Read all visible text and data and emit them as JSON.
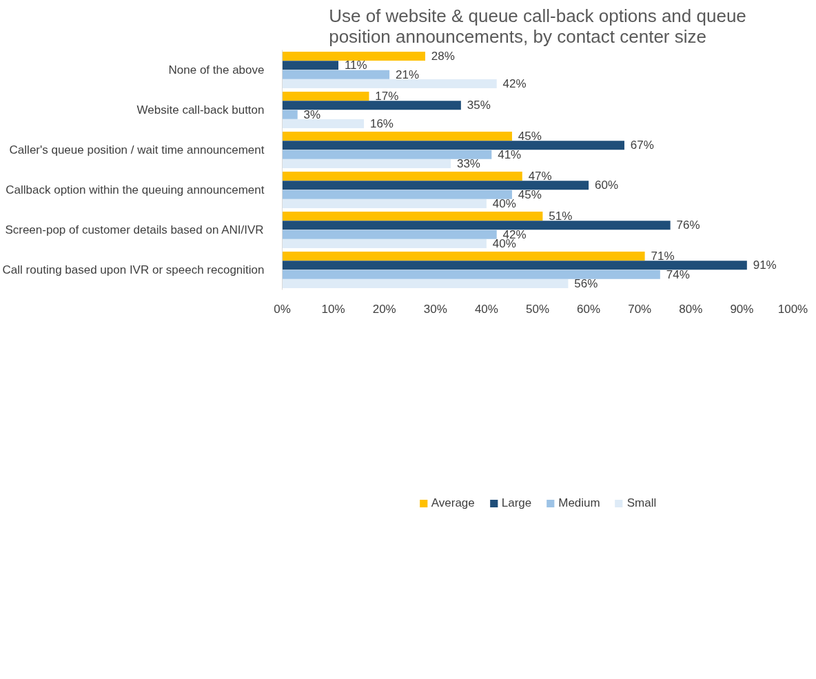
{
  "chart_data": {
    "type": "bar",
    "orientation": "horizontal",
    "title": "Use of website & queue call-back options and queue position announcements, by contact center size",
    "categories": [
      "None of the above",
      "Website call-back button",
      "Caller's queue position / wait time announcement",
      "Callback option within the queuing announcement",
      "Screen-pop of customer details based on ANI/IVR",
      "Call routing based upon IVR or speech recognition"
    ],
    "series": [
      {
        "name": "Average",
        "color": "#ffc000",
        "values": [
          28,
          17,
          45,
          47,
          51,
          71
        ],
        "value_labels": [
          "28%",
          "17%",
          "45%",
          "47%",
          "51%",
          "71%"
        ]
      },
      {
        "name": "Large",
        "color": "#1f4e79",
        "values": [
          11,
          35,
          67,
          60,
          76,
          91
        ],
        "value_labels": [
          "11%",
          "35%",
          "67%",
          "60%",
          "76%",
          "91%"
        ]
      },
      {
        "name": "Medium",
        "color": "#9dc3e6",
        "values": [
          21,
          3,
          41,
          45,
          42,
          74
        ],
        "value_labels": [
          "21%",
          "3%",
          "41%",
          "45%",
          "42%",
          "74%"
        ]
      },
      {
        "name": "Small",
        "color": "#deebf7",
        "values": [
          42,
          16,
          33,
          40,
          40,
          56
        ],
        "value_labels": [
          "42%",
          "16%",
          "33%",
          "40%",
          "40%",
          "56%"
        ]
      }
    ],
    "xlim": [
      0,
      100
    ],
    "xticks": [
      {
        "value": 0,
        "label": "0%"
      },
      {
        "value": 10,
        "label": "10%"
      },
      {
        "value": 20,
        "label": "20%"
      },
      {
        "value": 30,
        "label": "30%"
      },
      {
        "value": 40,
        "label": "40%"
      },
      {
        "value": 50,
        "label": "50%"
      },
      {
        "value": 60,
        "label": "60%"
      },
      {
        "value": 70,
        "label": "70%"
      },
      {
        "value": 80,
        "label": "80%"
      },
      {
        "value": 90,
        "label": "90%"
      },
      {
        "value": 100,
        "label": "100%"
      }
    ],
    "grid": false,
    "legend": "bottom"
  }
}
